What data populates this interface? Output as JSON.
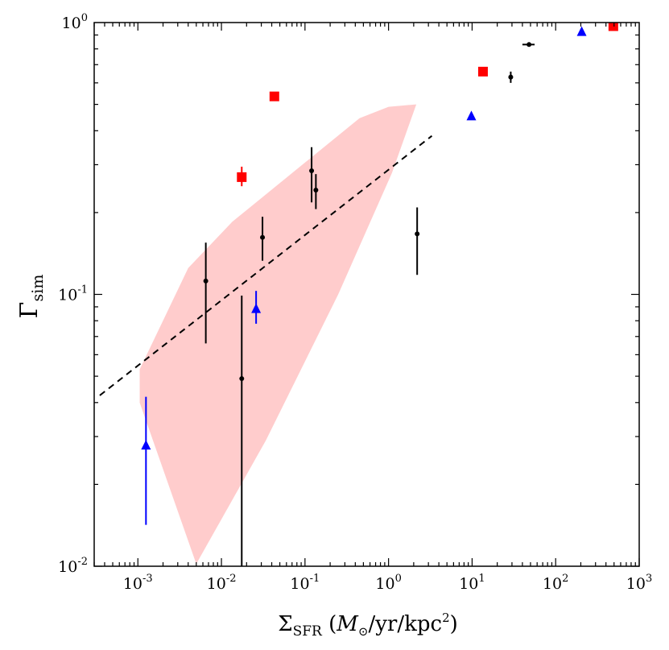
{
  "chart_data": {
    "type": "scatter",
    "title": "",
    "xscale": "log",
    "yscale": "log",
    "xlim": [
      0.0003,
      1000
    ],
    "ylim": [
      0.01,
      1
    ],
    "xlabel": {
      "main": "Σ",
      "sub": "SFR",
      "unit_open": " (",
      "unit_m": "M",
      "unit_sun": "⊙",
      "unit_mid": "/yr/kpc",
      "unit_sup": "2",
      "unit_close": ")"
    },
    "ylabel": {
      "main": "Γ",
      "sub": "sim"
    },
    "x_ticks": [
      {
        "value": 0.001,
        "base": "10",
        "exp": "-3"
      },
      {
        "value": 0.01,
        "base": "10",
        "exp": "-2"
      },
      {
        "value": 0.1,
        "base": "10",
        "exp": "-1"
      },
      {
        "value": 1,
        "base": "10",
        "exp": "0"
      },
      {
        "value": 10,
        "base": "10",
        "exp": "1"
      },
      {
        "value": 100,
        "base": "10",
        "exp": "2"
      },
      {
        "value": 1000,
        "base": "10",
        "exp": "3"
      }
    ],
    "y_ticks": [
      {
        "value": 0.01,
        "base": "10",
        "exp": "-2"
      },
      {
        "value": 0.1,
        "base": "10",
        "exp": "-1"
      },
      {
        "value": 1,
        "base": "10",
        "exp": "0"
      }
    ],
    "series": [
      {
        "name": "black circles",
        "marker": "circle",
        "color": "#000000",
        "points": [
          {
            "x": 0.0065,
            "y": 0.112,
            "ylo": 0.066,
            "yhi": 0.155
          },
          {
            "x": 0.0175,
            "y": 0.049,
            "ylo": 0.01,
            "yhi": 0.099
          },
          {
            "x": 0.031,
            "y": 0.162,
            "ylo": 0.133,
            "yhi": 0.193
          },
          {
            "x": 0.12,
            "y": 0.285,
            "ylo": 0.218,
            "yhi": 0.348
          },
          {
            "x": 0.135,
            "y": 0.242,
            "ylo": 0.206,
            "yhi": 0.277
          },
          {
            "x": 2.2,
            "y": 0.167,
            "ylo": 0.118,
            "yhi": 0.209
          },
          {
            "x": 29,
            "y": 0.63,
            "ylo": 0.6,
            "yhi": 0.66
          },
          {
            "x": 48,
            "y": 0.83,
            "xlo": 40,
            "xhi": 56
          }
        ]
      },
      {
        "name": "blue triangles",
        "marker": "triangle",
        "color": "#0000ff",
        "points": [
          {
            "x": 0.00125,
            "y": 0.028,
            "ylo": 0.0142,
            "yhi": 0.042
          },
          {
            "x": 0.026,
            "y": 0.089,
            "ylo": 0.078,
            "yhi": 0.103
          },
          {
            "x": 9.8,
            "y": 0.455
          },
          {
            "x": 205,
            "y": 0.93
          }
        ]
      },
      {
        "name": "red squares",
        "marker": "square",
        "color": "#ff0000",
        "points": [
          {
            "x": 0.0175,
            "y": 0.27,
            "ylo": 0.25,
            "yhi": 0.295
          },
          {
            "x": 0.043,
            "y": 0.535
          },
          {
            "x": 13.5,
            "y": 0.66
          },
          {
            "x": 490,
            "y": 0.97
          }
        ]
      }
    ],
    "fit_line": {
      "style": "dashed",
      "color": "#000000",
      "points": [
        [
          0.00035,
          0.0425
        ],
        [
          3.3,
          0.383
        ]
      ]
    },
    "shaded_region": {
      "color": "#ff9999",
      "opacity": 0.5,
      "polygon": [
        [
          0.00105,
          0.053
        ],
        [
          0.004,
          0.125
        ],
        [
          0.0135,
          0.185
        ],
        [
          0.45,
          0.445
        ],
        [
          1.0,
          0.49
        ],
        [
          2.15,
          0.5
        ],
        [
          1.1,
          0.28
        ],
        [
          0.25,
          0.1
        ],
        [
          0.034,
          0.029
        ],
        [
          0.005,
          0.0102
        ],
        [
          0.00105,
          0.04
        ]
      ]
    }
  }
}
